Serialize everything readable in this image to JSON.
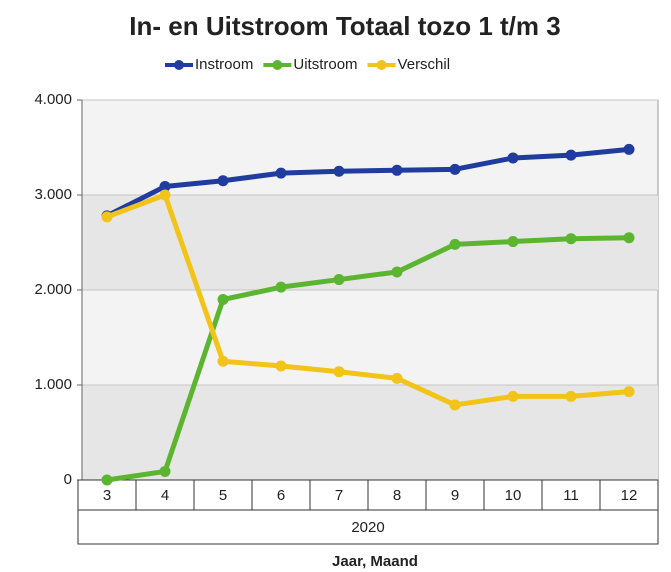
{
  "chart_data": {
    "type": "line",
    "title": "In- en Uitstroom Totaal tozo 1 t/m 3",
    "categories": [
      "3",
      "4",
      "5",
      "6",
      "7",
      "8",
      "9",
      "10",
      "11",
      "12"
    ],
    "x_group": "2020",
    "xlabel": "Jaar, Maand",
    "series": [
      {
        "name": "Instroom",
        "color": "#1f3c9e",
        "values": [
          2780,
          3090,
          3150,
          3230,
          3250,
          3260,
          3270,
          3390,
          3420,
          3480
        ]
      },
      {
        "name": "Uitstroom",
        "color": "#5cb531",
        "values": [
          0,
          90,
          1900,
          2030,
          2110,
          2190,
          2480,
          2510,
          2540,
          2550
        ]
      },
      {
        "name": "Verschil",
        "color": "#f2c318",
        "values": [
          2770,
          3000,
          1250,
          1200,
          1140,
          1070,
          790,
          880,
          880,
          930
        ]
      }
    ],
    "ylim": [
      0,
      4000
    ],
    "yticks": [
      0,
      {
        "value": 1000,
        "label": "1.000"
      },
      {
        "value": 2000,
        "label": "2.000"
      },
      {
        "value": 3000,
        "label": "3.000"
      },
      {
        "value": 4000,
        "label": "4.000"
      }
    ],
    "grid": true,
    "legend": "top"
  }
}
